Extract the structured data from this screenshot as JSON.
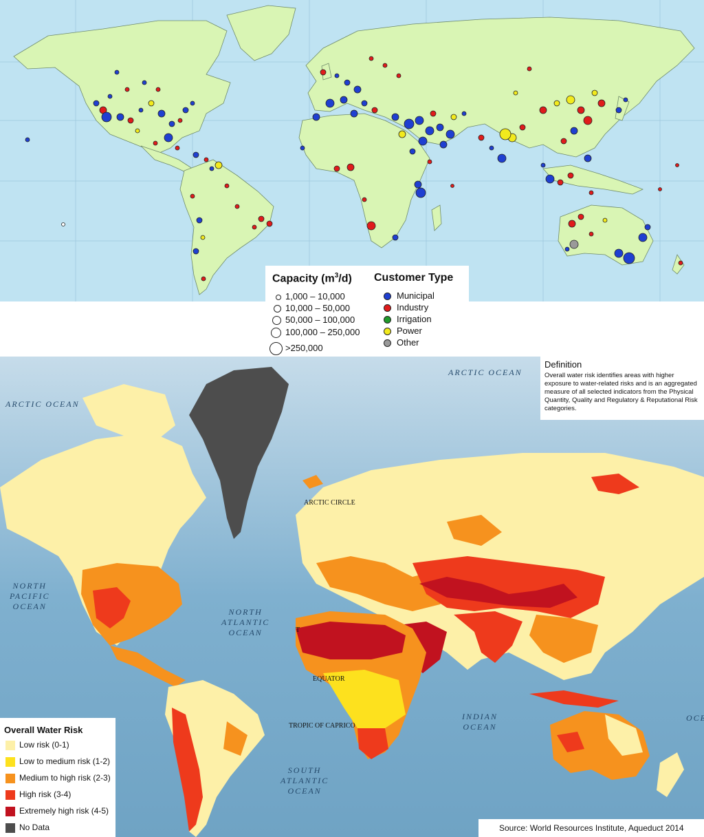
{
  "top_map": {
    "legend": {
      "capacity_title": "Capacity (m",
      "capacity_sup": "3",
      "capacity_title_end": "/d)",
      "capacity_classes": [
        "1,000 – 10,000",
        "10,000 – 50,000",
        "50,000 – 100,000",
        "100,000 – 250,000",
        ">250,000"
      ],
      "customer_title": "Customer Type",
      "customer_types": [
        {
          "label": "Municipal",
          "color": "#1f3fd1"
        },
        {
          "label": "Industry",
          "color": "#e01b1b"
        },
        {
          "label": "Irrigation",
          "color": "#1f9a2a"
        },
        {
          "label": "Power",
          "color": "#f2ea1d"
        },
        {
          "label": "Other",
          "color": "#9a9a9a"
        }
      ]
    },
    "colors": {
      "ocean": "#bfe3f2",
      "land": "#d9f5b4",
      "border": "#6e8a6a"
    }
  },
  "bottom_map": {
    "definition": {
      "heading": "Definition",
      "text": "Overall water risk identifies areas with higher exposure to water-related risks and is an aggregated measure of all selected indicators from the Physical Quantity, Quality and Regulatory & Reputational Risk categories."
    },
    "ocean_labels": {
      "arctic_left": "ARCTIC OCEAN",
      "arctic_right": "ARCTIC OCEAN",
      "north_pacific": "NORTH\nPACIFIC\nOCEAN",
      "north_atlantic": "NORTH\nATLANTIC\nOCEAN",
      "south_atlantic": "SOUTH\nATLANTIC\nOCEAN",
      "indian": "INDIAN\nOCEAN",
      "right_edge": "OCE"
    },
    "line_labels": {
      "arctic_circle": "ARCTIC CIRCLE",
      "equator": "EQUATOR",
      "tropic_capricorn": "TROPIC OF CAPRICO",
      "tropic_cancer_fragment": "T"
    },
    "legend": {
      "title": "Overall Water Risk",
      "classes": [
        {
          "label": "Low risk (0-1)",
          "color": "#fdf0a8"
        },
        {
          "label": "Low to medium risk (1-2)",
          "color": "#fde11e"
        },
        {
          "label": "Medium to high risk (2-3)",
          "color": "#f6921e"
        },
        {
          "label": "High risk (3-4)",
          "color": "#ee3a1c"
        },
        {
          "label": "Extremely high risk (4-5)",
          "color": "#c1121f"
        },
        {
          "label": "No Data",
          "color": "#4d4d4d"
        }
      ]
    },
    "source": "Source: World Resources Institute, Aqueduct 2014"
  }
}
